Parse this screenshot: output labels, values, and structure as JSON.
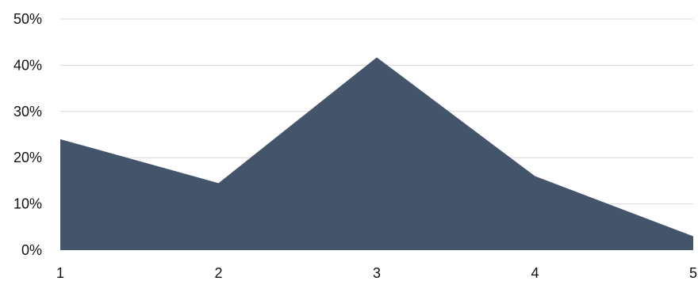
{
  "chart_data": {
    "type": "area",
    "categories": [
      "1",
      "2",
      "3",
      "4",
      "5"
    ],
    "series": [
      {
        "values": [
          24,
          14.5,
          41.7,
          16,
          3
        ]
      }
    ],
    "ylim": [
      0,
      50
    ],
    "y_ticks": [
      "0%",
      "10%",
      "20%",
      "30%",
      "40%",
      "50%"
    ],
    "grid": true,
    "legend": "none",
    "colors": {
      "area": "#44546A",
      "grid": "#D9D9D9",
      "text": "#111111"
    }
  }
}
